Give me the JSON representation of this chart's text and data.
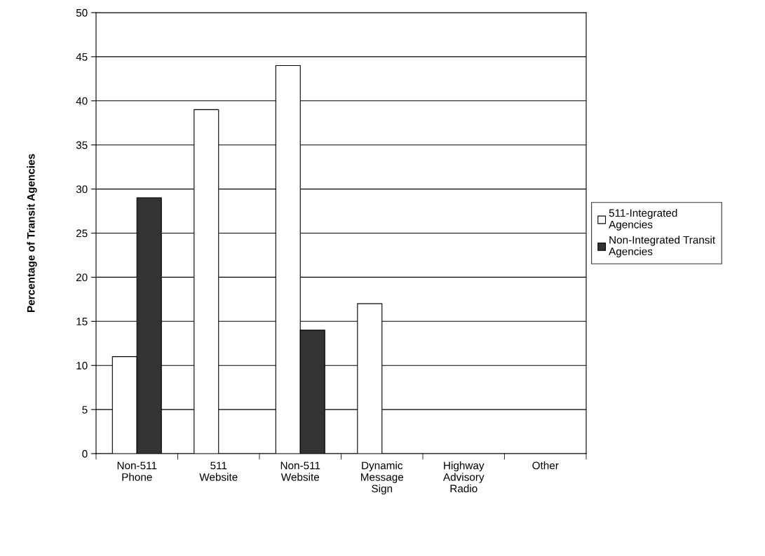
{
  "chart_data": {
    "type": "bar",
    "ylabel": "Percentage of Transit Agencies",
    "categories": [
      "Non-511\nPhone",
      "511\nWebsite",
      "Non-511\nWebsite",
      "Dynamic\nMessage\nSign",
      "Highway\nAdvisory\nRadio",
      "Other"
    ],
    "series": [
      {
        "name": "511-Integrated\nAgencies",
        "color": "#ffffff",
        "values": [
          11,
          39,
          44,
          17,
          0,
          0
        ]
      },
      {
        "name": "Non-Integrated Transit\nAgencies",
        "color": "#333333",
        "values": [
          29,
          0,
          14,
          0,
          0,
          0
        ]
      }
    ],
    "ylim": [
      0,
      50
    ],
    "yticks": [
      0,
      5,
      10,
      15,
      20,
      25,
      30,
      35,
      40,
      45,
      50
    ],
    "grid": "y",
    "legend": "right"
  }
}
